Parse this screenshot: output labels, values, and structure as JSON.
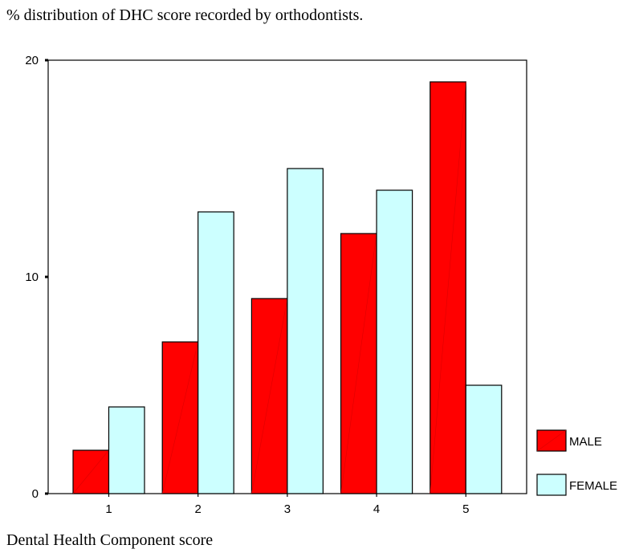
{
  "chart_data": {
    "type": "bar",
    "title": "% distribution of DHC score recorded by orthodontists.",
    "xlabel": "Dental Health Component score",
    "ylabel": "",
    "categories": [
      "1",
      "2",
      "3",
      "4",
      "5"
    ],
    "ylim": [
      0,
      20
    ],
    "yticks": [
      "0",
      "10",
      "20"
    ],
    "series": [
      {
        "name": "MALE",
        "values": [
          2,
          7,
          9,
          12,
          19
        ],
        "color": "#ff0000"
      },
      {
        "name": "FEMALE",
        "values": [
          4,
          13,
          15,
          14,
          5
        ],
        "color": "#ccffff"
      }
    ],
    "legend": "right",
    "grid": false
  }
}
